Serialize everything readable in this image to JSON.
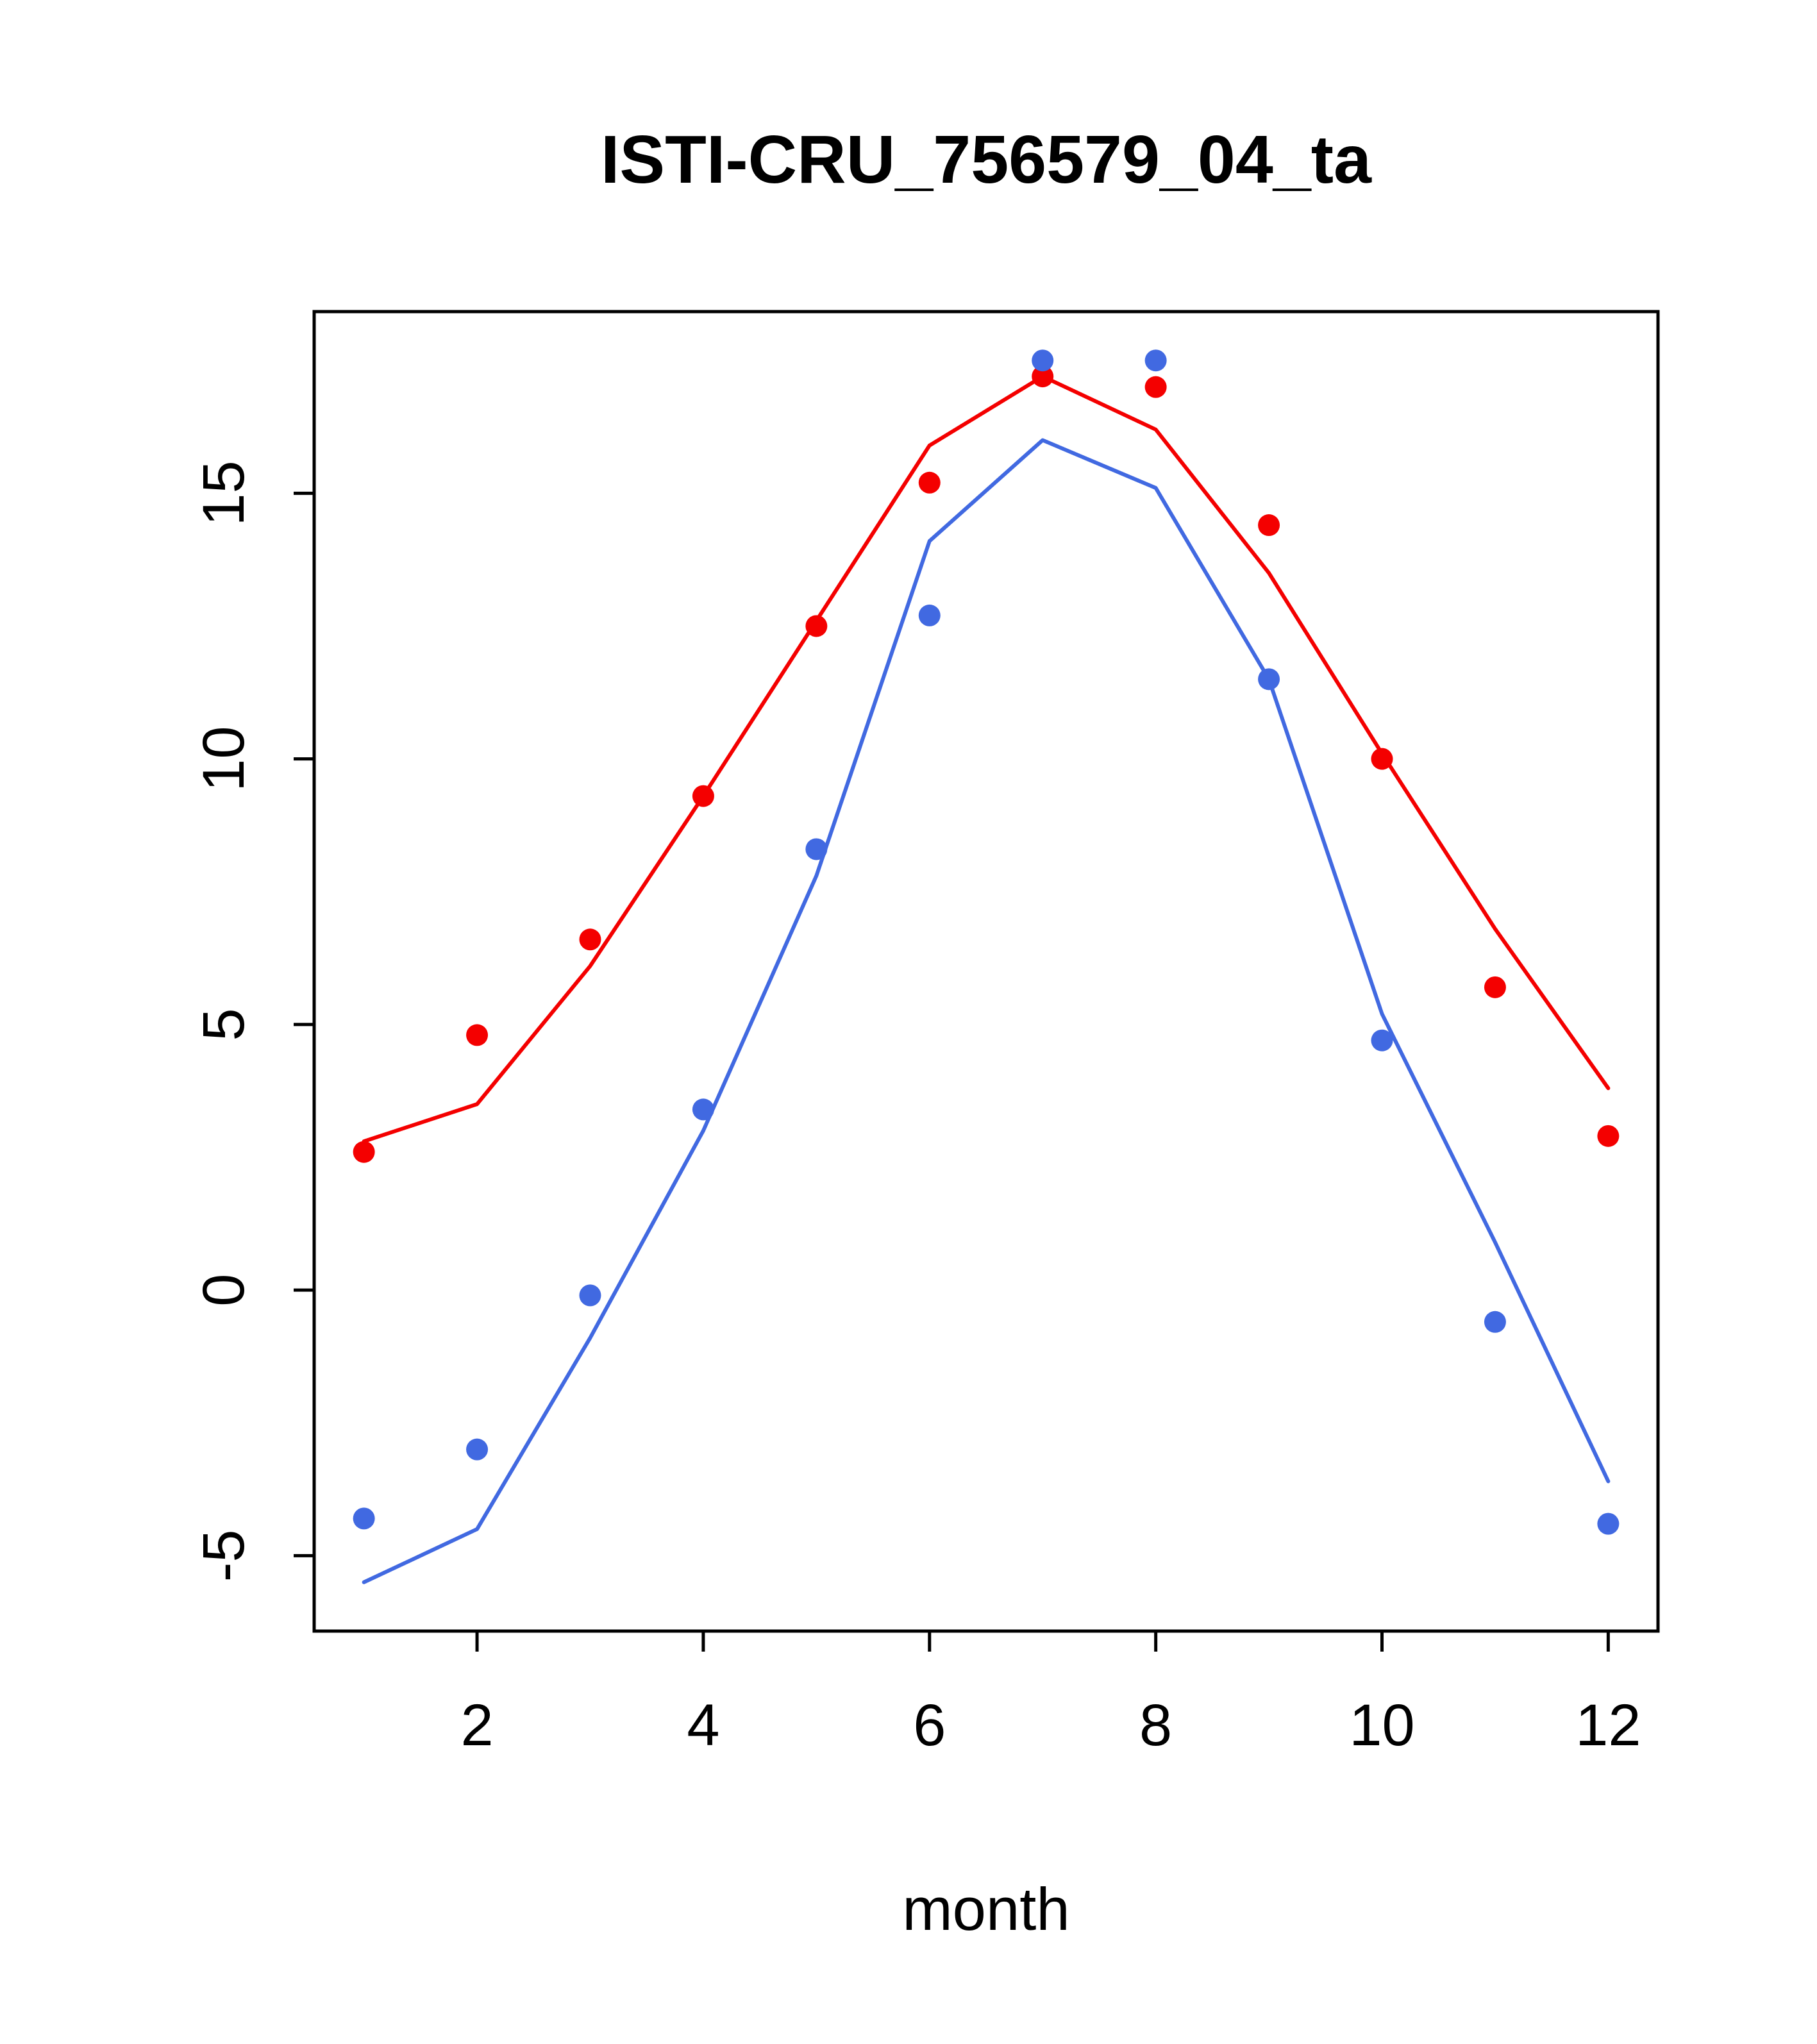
{
  "chart_data": {
    "type": "line",
    "title": "ISTI-CRU_756579_04_ta",
    "xlabel": "month",
    "ylabel": "",
    "x": [
      1,
      2,
      3,
      4,
      5,
      6,
      7,
      8,
      9,
      10,
      11,
      12
    ],
    "xlim": [
      0.56,
      12.44
    ],
    "ylim": [
      -6.42,
      18.42
    ],
    "x_ticks": [
      2,
      4,
      6,
      8,
      10,
      12
    ],
    "y_ticks": [
      -5,
      0,
      5,
      10,
      15
    ],
    "grid": false,
    "legend": "none",
    "colors": {
      "red": "#f40000",
      "blue": "#4169e1"
    },
    "series": [
      {
        "name": "red-line",
        "mode": "line",
        "color": "#f40000",
        "values": [
          2.8,
          3.5,
          6.1,
          9.3,
          12.6,
          15.9,
          17.2,
          16.2,
          13.5,
          10.1,
          6.8,
          3.8
        ]
      },
      {
        "name": "blue-line",
        "mode": "line",
        "color": "#4169e1",
        "values": [
          -5.5,
          -4.5,
          -0.9,
          3.0,
          7.8,
          14.1,
          16.0,
          15.1,
          11.5,
          5.2,
          0.9,
          -3.6
        ]
      },
      {
        "name": "red-points",
        "mode": "scatter",
        "color": "#f40000",
        "values": [
          2.6,
          4.8,
          6.6,
          9.3,
          12.5,
          15.2,
          17.2,
          17.0,
          14.4,
          10.0,
          5.7,
          2.9
        ]
      },
      {
        "name": "blue-points",
        "mode": "scatter",
        "color": "#4169e1",
        "values": [
          -4.3,
          -3.0,
          -0.1,
          3.4,
          8.3,
          12.7,
          17.5,
          17.5,
          11.5,
          4.7,
          -0.6,
          -4.4
        ]
      }
    ]
  }
}
